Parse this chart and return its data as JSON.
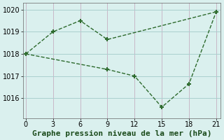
{
  "line1_x": [
    0,
    3,
    6,
    9,
    21
  ],
  "line1_y": [
    1018.0,
    1019.0,
    1019.5,
    1018.65,
    1019.9
  ],
  "line2_x": [
    0,
    9,
    12,
    15,
    18,
    21
  ],
  "line2_y": [
    1018.0,
    1017.3,
    1017.0,
    1015.6,
    1016.65,
    1019.9
  ],
  "line_color": "#2d6a2d",
  "marker": "+",
  "marker_size": 5,
  "marker_linewidth": 1.5,
  "background_color": "#daf0ee",
  "grid_color": "#aacfcf",
  "xlabel": "Graphe pression niveau de la mer (hPa)",
  "xlabel_fontsize": 8,
  "xticks": [
    0,
    3,
    6,
    9,
    12,
    15,
    18,
    21
  ],
  "yticks": [
    1016,
    1017,
    1018,
    1019,
    1020
  ],
  "xlim": [
    -0.3,
    21.5
  ],
  "ylim": [
    1015.1,
    1020.3
  ]
}
